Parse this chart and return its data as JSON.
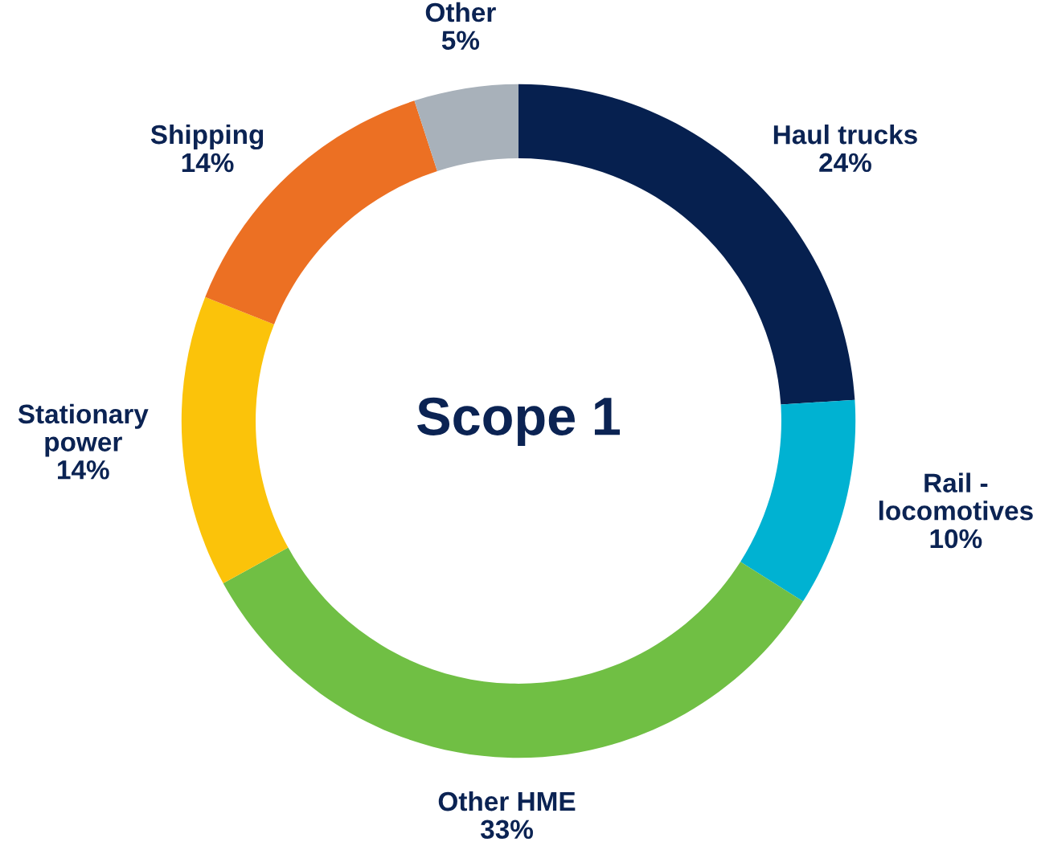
{
  "chart_data": {
    "type": "donut",
    "title": "Scope 1",
    "categories": [
      "Haul trucks",
      "Rail -\nlocomotives",
      "Other HME",
      "Stationary\npower",
      "Shipping",
      "Other"
    ],
    "values": [
      24,
      10,
      33,
      14,
      14,
      5
    ],
    "value_labels": [
      "24%",
      "10%",
      "33%",
      "14%",
      "14%",
      "5%"
    ],
    "colors": [
      "#06204f",
      "#00b2d2",
      "#70bf44",
      "#fbc30a",
      "#ec7023",
      "#a8b1ba"
    ],
    "legend": false
  }
}
